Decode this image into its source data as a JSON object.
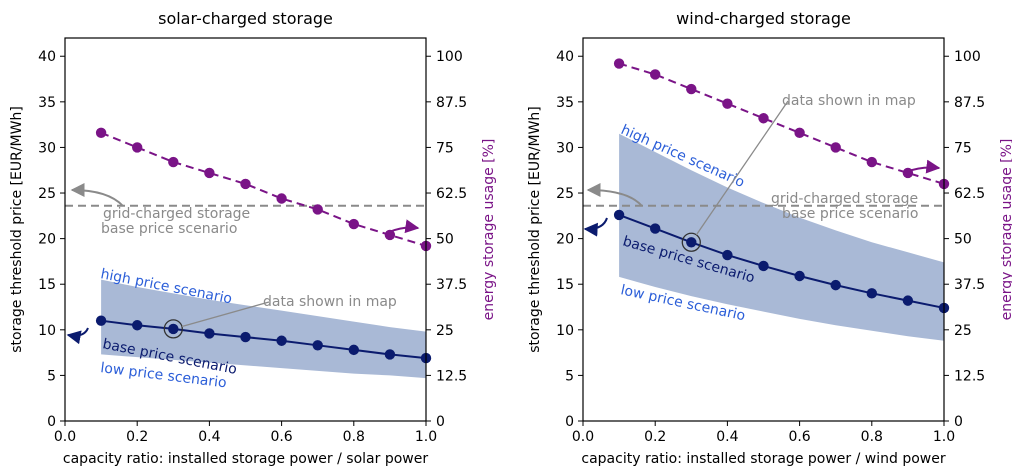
{
  "colors": {
    "base": "#0b1b6e",
    "band": "#a9b9d6",
    "band_label": "#2b5ed8",
    "usage": "#7a1487",
    "grid_ref": "#8a8a8a"
  },
  "chart_data": [
    {
      "type": "line",
      "title": "solar-charged storage",
      "xlabel": "capacity ratio: installed storage power / solar power",
      "ylabel": "storage threshold price [EUR/MWh]",
      "ylabel_right": "energy storage usage [%]",
      "xlim": [
        0,
        1
      ],
      "ylim": [
        0,
        42
      ],
      "ylim_right": [
        0,
        105
      ],
      "xticks": [
        "0.0",
        "0.2",
        "0.4",
        "0.6",
        "0.8",
        "1.0"
      ],
      "yticks": [
        "0",
        "5",
        "10",
        "15",
        "20",
        "25",
        "30",
        "35",
        "40"
      ],
      "yticks_right": [
        "0",
        "12.5",
        "25",
        "37.5",
        "50",
        "62.5",
        "75",
        "87.5",
        "100"
      ],
      "x": [
        0.1,
        0.2,
        0.3,
        0.4,
        0.5,
        0.6,
        0.7,
        0.8,
        0.9,
        1.0
      ],
      "series": [
        {
          "name": "base price scenario",
          "axis": "left",
          "style": "solid-markers",
          "values": [
            11.0,
            10.5,
            10.1,
            9.6,
            9.2,
            8.8,
            8.3,
            7.8,
            7.3,
            6.9
          ]
        },
        {
          "axis": "right",
          "style": "dashed-markers",
          "values": [
            79,
            75,
            71,
            68,
            65,
            61,
            58,
            54,
            51,
            48
          ]
        }
      ],
      "band": {
        "upper": [
          15.5,
          14.7,
          14.0,
          13.3,
          12.7,
          12.1,
          11.5,
          10.9,
          10.3,
          9.8
        ],
        "lower": [
          7.3,
          7.0,
          6.7,
          6.4,
          6.1,
          5.8,
          5.5,
          5.2,
          5.0,
          4.7
        ]
      },
      "reference_line": {
        "y": 23.6,
        "label1": "grid-charged storage",
        "label2": "base price scenario"
      },
      "annotations": {
        "high": "high price scenario",
        "base": "base price scenario",
        "low": "low price scenario",
        "map": "data shown in map",
        "map_point": {
          "x": 0.3,
          "y": 10.1
        }
      }
    },
    {
      "type": "line",
      "title": "wind-charged storage",
      "xlabel": "capacity ratio: installed storage power / wind power",
      "ylabel": "storage threshold price [EUR/MWh]",
      "ylabel_right": "energy storage usage [%]",
      "xlim": [
        0,
        1
      ],
      "ylim": [
        0,
        42
      ],
      "ylim_right": [
        0,
        105
      ],
      "xticks": [
        "0.0",
        "0.2",
        "0.4",
        "0.6",
        "0.8",
        "1.0"
      ],
      "yticks": [
        "0",
        "5",
        "10",
        "15",
        "20",
        "25",
        "30",
        "35",
        "40"
      ],
      "yticks_right": [
        "0",
        "12.5",
        "25",
        "37.5",
        "50",
        "62.5",
        "75",
        "87.5",
        "100"
      ],
      "x": [
        0.1,
        0.2,
        0.3,
        0.4,
        0.5,
        0.6,
        0.7,
        0.8,
        0.9,
        1.0
      ],
      "series": [
        {
          "name": "base price scenario",
          "axis": "left",
          "style": "solid-markers",
          "values": [
            22.6,
            21.1,
            19.6,
            18.2,
            17.0,
            15.9,
            14.9,
            14.0,
            13.2,
            12.4
          ]
        },
        {
          "axis": "right",
          "style": "dashed-markers",
          "values": [
            98,
            95,
            91,
            87,
            83,
            79,
            75,
            71,
            68,
            65
          ]
        }
      ],
      "band": {
        "upper": [
          31.5,
          29.5,
          27.5,
          25.6,
          23.9,
          22.3,
          20.9,
          19.6,
          18.5,
          17.4
        ],
        "lower": [
          15.8,
          14.7,
          13.7,
          12.8,
          12.0,
          11.2,
          10.5,
          9.9,
          9.3,
          8.8
        ]
      },
      "reference_line": {
        "y": 23.6,
        "label1": "grid-charged storage",
        "label2": "base price scenario"
      },
      "annotations": {
        "high": "high price scenario",
        "base": "base price scenario",
        "low": "low price scenario",
        "map": "data shown in map",
        "map_point": {
          "x": 0.3,
          "y": 19.6
        }
      }
    }
  ]
}
